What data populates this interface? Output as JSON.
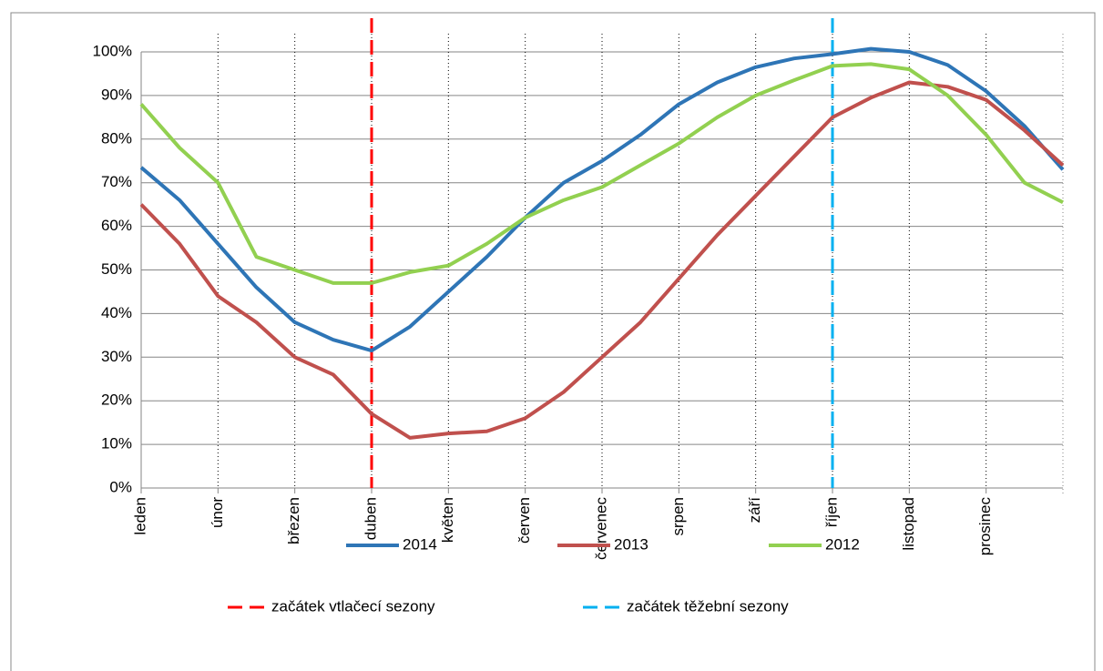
{
  "chart_data": {
    "type": "line",
    "categories": [
      "leden",
      null,
      "únor",
      null,
      "březen",
      null,
      "duben",
      null,
      "květen",
      null,
      "červen",
      null,
      "červenec",
      null,
      "srpen",
      null,
      "září",
      null,
      "říjen",
      null,
      "listopad",
      null,
      "prosinec",
      null,
      null
    ],
    "series": [
      {
        "name": "2014",
        "color": "#2e75b6",
        "values": [
          73.5,
          66,
          56,
          46,
          38,
          34,
          31.5,
          37,
          45,
          53,
          62,
          70,
          75,
          81,
          88,
          93,
          96.5,
          98.5,
          99.5,
          100.7,
          100,
          97,
          91,
          83,
          73
        ]
      },
      {
        "name": "2013",
        "color": "#c0504d",
        "values": [
          65,
          56,
          44,
          38,
          30,
          26,
          17,
          11.5,
          12.5,
          13,
          16,
          22,
          30,
          38,
          48,
          58,
          67,
          76,
          85,
          89.5,
          93,
          92,
          89,
          82,
          74
        ]
      },
      {
        "name": "2012",
        "color": "#92d050",
        "values": [
          88,
          78,
          70,
          53,
          50,
          47,
          47,
          49.5,
          51,
          56,
          62,
          66,
          69,
          74,
          79,
          85,
          90,
          93.5,
          96.8,
          97.2,
          96,
          90,
          81,
          70,
          65.5
        ]
      }
    ],
    "vlines": [
      {
        "name": "začátek vtlačecí sezony",
        "color": "#ff0000",
        "at": 6
      },
      {
        "name": "začátek těžební sezony",
        "color": "#00b0f0",
        "at": 18
      }
    ],
    "ylim": [
      0,
      100
    ],
    "yticks": [
      {
        "value": 0,
        "label": "0%"
      },
      {
        "value": 10,
        "label": "10%"
      },
      {
        "value": 20,
        "label": "20%"
      },
      {
        "value": 30,
        "label": "30%"
      },
      {
        "value": 40,
        "label": "40%"
      },
      {
        "value": 50,
        "label": "50%"
      },
      {
        "value": 60,
        "label": "60%"
      },
      {
        "value": 70,
        "label": "70%"
      },
      {
        "value": 80,
        "label": "80%"
      },
      {
        "value": 90,
        "label": "90%"
      },
      {
        "value": 100,
        "label": "100%"
      }
    ],
    "grid": true
  }
}
